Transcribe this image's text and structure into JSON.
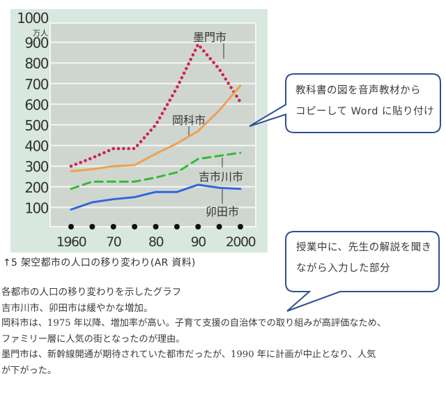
{
  "chart_data": {
    "type": "line",
    "title": "架空都市の人口の移り変わり",
    "xlabel": "",
    "ylabel": "万人",
    "ylim": [
      0,
      1000
    ],
    "grid": true,
    "x": [
      1960,
      1965,
      1970,
      1975,
      1980,
      1985,
      1990,
      1995,
      2000
    ],
    "x_tick_labels": [
      "1960",
      "70",
      "80",
      "90",
      "2000"
    ],
    "x_tick_positions": [
      1960,
      1970,
      1980,
      1990,
      2000
    ],
    "y_ticks": [
      100,
      200,
      300,
      400,
      500,
      600,
      700,
      800,
      900,
      1000
    ],
    "y_unit": "万人",
    "series": [
      {
        "name": "墨門市",
        "style": "dotted",
        "color": "#d4204c",
        "values": [
          300,
          340,
          385,
          385,
          500,
          680,
          890,
          770,
          610
        ]
      },
      {
        "name": "岡科市",
        "style": "solid",
        "color": "#f0a050",
        "values": [
          275,
          285,
          300,
          305,
          360,
          410,
          470,
          570,
          690
        ]
      },
      {
        "name": "吉市川市",
        "style": "dashed",
        "color": "#33bb33",
        "values": [
          190,
          225,
          225,
          225,
          245,
          270,
          335,
          350,
          365
        ]
      },
      {
        "name": "卯田市",
        "style": "solid",
        "color": "#3366dd",
        "values": [
          90,
          125,
          140,
          150,
          175,
          175,
          210,
          195,
          190
        ]
      }
    ],
    "series_labels": [
      {
        "name": "墨門市",
        "label_x": 2,
        "label_y": 2
      },
      {
        "name": "岡科市"
      },
      {
        "name": "吉市川市"
      },
      {
        "name": "卯田市"
      }
    ],
    "legend_position": "inline labels"
  },
  "chart": {
    "y_unit_label": "万人",
    "colors": {
      "panel_bg": "#d8e8df",
      "plot_bg": "#cfd6d0",
      "grid": "#f2f5f2"
    }
  },
  "callouts": {
    "top": {
      "line1": "教科書の図を音声教材から",
      "line2": "コピーして Word に貼り付け"
    },
    "bottom": {
      "line1": "授業中に、先生の解説を聞き",
      "line2": "ながら入力した部分"
    },
    "border_color": "#2f4f8f"
  },
  "caption": "↑5 架空都市の人口の移り変わり(AR 資料)",
  "notes": [
    "各都市の人口の移り変わりを示したグラフ",
    "吉市川市、卯田市は緩やかな増加。",
    "岡科市は、1975 年以降、増加率が高い。子育て支援の自治体での取り組みが高評価なため、",
    "ファミリー層に人気の街となったのが理由。",
    "墨門市は、新幹線開通が期待されていた都市だったが、1990 年に計画が中止となり、人気",
    "が下がった。"
  ]
}
